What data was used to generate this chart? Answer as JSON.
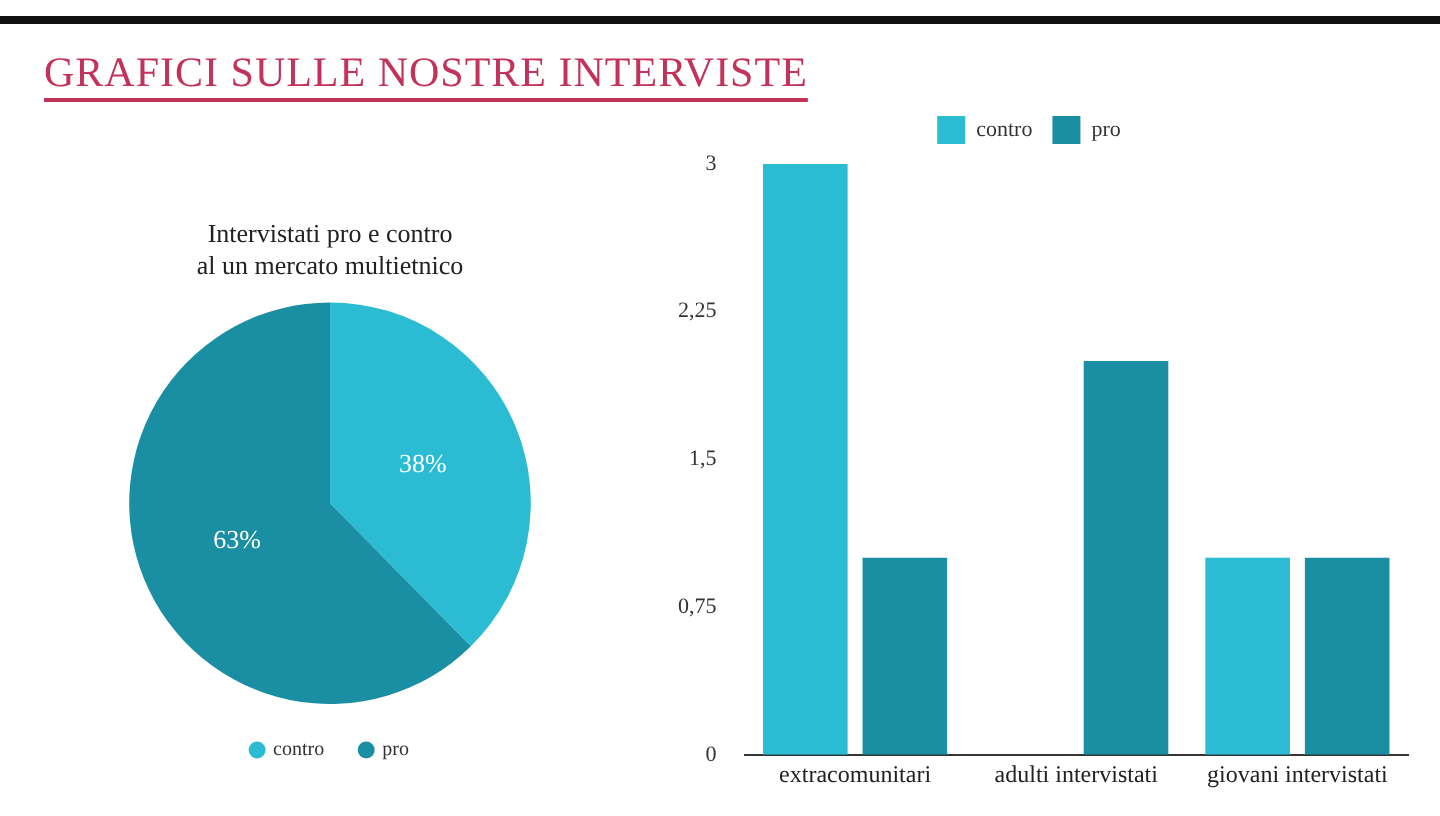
{
  "chart_data": [
    {
      "type": "pie",
      "title": "Intervistati pro e contro al un mercato multietnico",
      "annotations": [
        "GRAFICI SULLE NOSTRE INTERVISTE"
      ],
      "categories": [
        "contro",
        "pro"
      ],
      "values": [
        38,
        63
      ],
      "colors": [
        "#2bbcd4",
        "#1a8ea3"
      ],
      "value_labels": [
        "38%",
        "63%"
      ],
      "legend": "bottom"
    },
    {
      "type": "bar",
      "categories": [
        "extracomunitari",
        "adulti intervistati",
        "giovani intervistati"
      ],
      "series": [
        {
          "name": "contro",
          "color": "#2bbcd4",
          "values": [
            3,
            0,
            1
          ]
        },
        {
          "name": "pro",
          "color": "#1a8ea3",
          "values": [
            1,
            2,
            1
          ]
        }
      ],
      "ylim": [
        0,
        3
      ],
      "yticks": [
        0,
        {
          "value": 0.75,
          "label": "0,75"
        },
        {
          "value": 1.5,
          "label": "1,5"
        },
        {
          "value": 2.25,
          "label": "2,25"
        },
        3
      ],
      "grid": false,
      "legend": "top"
    }
  ]
}
